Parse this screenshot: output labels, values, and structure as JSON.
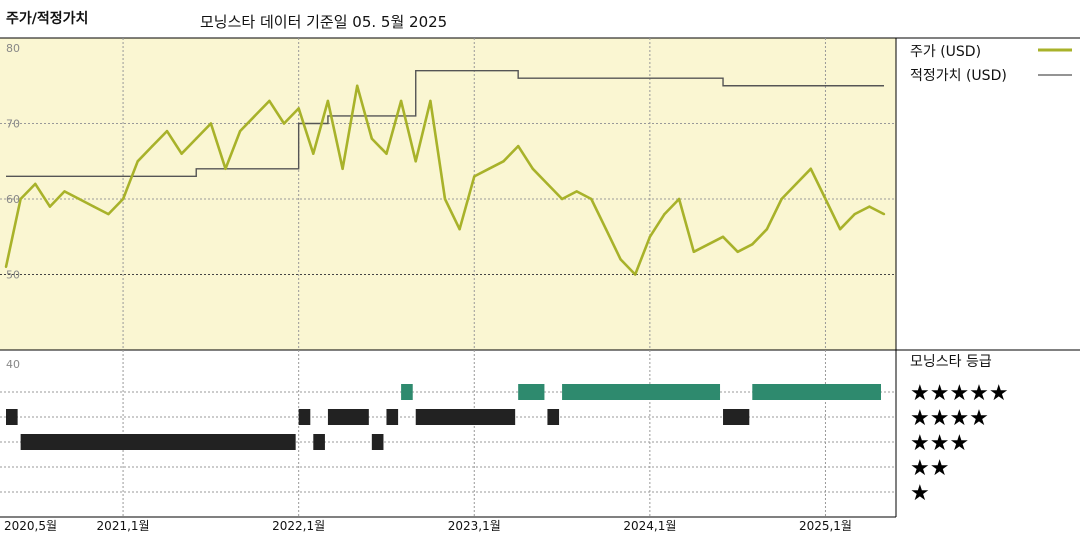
{
  "header": {
    "left_title": "주가/적정가치",
    "main_title": "모닝스타 데이터 기준일 05. 5월 2025"
  },
  "legend": {
    "price_label": "주가 (USD)",
    "fair_value_label": "적정가치 (USD)",
    "rating_title": "모닝스타 등급"
  },
  "colors": {
    "price_line": "#a8b22a",
    "fair_value_line": "#555555",
    "top_panel_bg": "#faf6d2",
    "rating_5": "#2e8a6e",
    "rating_4": "#222222",
    "rating_3": "#222222"
  },
  "chart_data": [
    {
      "type": "line",
      "x_start": "2020-05",
      "x_end": "2025-05",
      "ylim": [
        40,
        80
      ],
      "y_ticks": [
        "80",
        "70",
        "60",
        "50"
      ],
      "x_ticks": [
        "2020,5월",
        "2021,1월",
        "2022,1월",
        "2023,1월",
        "2024,1월",
        "2025,1월"
      ],
      "series": [
        {
          "name": "주가 (USD)",
          "x": [
            "2020-05",
            "2020-06",
            "2020-07",
            "2020-08",
            "2020-09",
            "2020-10",
            "2020-11",
            "2020-12",
            "2021-01",
            "2021-02",
            "2021-03",
            "2021-04",
            "2021-05",
            "2021-06",
            "2021-07",
            "2021-08",
            "2021-09",
            "2021-10",
            "2021-11",
            "2021-12",
            "2022-01",
            "2022-02",
            "2022-03",
            "2022-04",
            "2022-05",
            "2022-06",
            "2022-07",
            "2022-08",
            "2022-09",
            "2022-10",
            "2022-11",
            "2022-12",
            "2023-01",
            "2023-02",
            "2023-03",
            "2023-04",
            "2023-05",
            "2023-06",
            "2023-07",
            "2023-08",
            "2023-09",
            "2023-10",
            "2023-11",
            "2023-12",
            "2024-01",
            "2024-02",
            "2024-03",
            "2024-04",
            "2024-05",
            "2024-06",
            "2024-07",
            "2024-08",
            "2024-09",
            "2024-10",
            "2024-11",
            "2024-12",
            "2025-01",
            "2025-02",
            "2025-03",
            "2025-04",
            "2025-05"
          ],
          "values": [
            51,
            60,
            62,
            59,
            61,
            60,
            59,
            58,
            60,
            65,
            67,
            69,
            66,
            68,
            70,
            64,
            69,
            71,
            73,
            70,
            72,
            66,
            73,
            64,
            75,
            68,
            66,
            73,
            65,
            73,
            60,
            56,
            63,
            64,
            65,
            67,
            64,
            62,
            60,
            61,
            60,
            56,
            52,
            50,
            55,
            58,
            60,
            53,
            54,
            55,
            53,
            54,
            56,
            60,
            62,
            64,
            60,
            56,
            58,
            59,
            58
          ]
        },
        {
          "name": "적정가치 (USD)",
          "x": [
            "2020-05",
            "2021-01",
            "2021-06",
            "2021-09",
            "2022-01",
            "2022-03",
            "2022-09",
            "2023-04",
            "2024-06",
            "2025-05"
          ],
          "values": [
            63,
            63,
            64,
            64,
            70,
            71,
            77,
            76,
            75,
            75
          ]
        }
      ]
    },
    {
      "type": "bar",
      "title": "모닝스타 등급",
      "y_tick_top": "40",
      "levels": [
        "★★★★★",
        "★★★★",
        "★★★",
        "★★",
        "★"
      ],
      "x_start": "2020-05",
      "x_end": "2025-05",
      "periods": [
        {
          "stars": 4,
          "start": "2020-05",
          "end": "2020-06"
        },
        {
          "stars": 3,
          "start": "2020-06",
          "end": "2022-01"
        },
        {
          "stars": 4,
          "start": "2022-01",
          "end": "2022-02"
        },
        {
          "stars": 3,
          "start": "2022-02",
          "end": "2022-03"
        },
        {
          "stars": 4,
          "start": "2022-03",
          "end": "2022-06"
        },
        {
          "stars": 3,
          "start": "2022-06",
          "end": "2022-07"
        },
        {
          "stars": 4,
          "start": "2022-07",
          "end": "2022-08"
        },
        {
          "stars": 5,
          "start": "2022-08",
          "end": "2022-09"
        },
        {
          "stars": 4,
          "start": "2022-09",
          "end": "2023-04"
        },
        {
          "stars": 5,
          "start": "2023-04",
          "end": "2023-06"
        },
        {
          "stars": 4,
          "start": "2023-06",
          "end": "2023-07"
        },
        {
          "stars": 5,
          "start": "2023-07",
          "end": "2024-06"
        },
        {
          "stars": 4,
          "start": "2024-06",
          "end": "2024-08"
        },
        {
          "stars": 5,
          "start": "2024-08",
          "end": "2025-05"
        }
      ]
    }
  ]
}
